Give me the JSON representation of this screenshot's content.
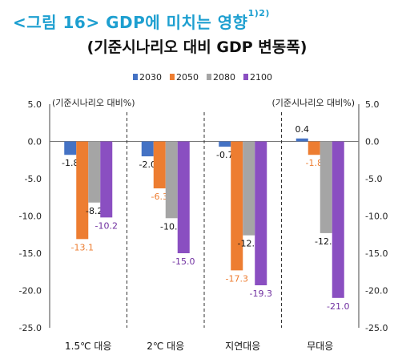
{
  "title": {
    "prefix": "<그림 16> GDP에 미치는 영향",
    "superscript": "1)2)"
  },
  "subtitle": "(기준시나리오 대비 GDP 변동폭)",
  "chart_data": {
    "type": "bar",
    "title": "",
    "categories": [
      "1.5℃ 대응",
      "2℃ 대응",
      "지연대응",
      "무대응"
    ],
    "series": [
      {
        "name": "2030",
        "color": "#4472c4",
        "values": [
          -1.8,
          -2.0,
          -0.7,
          0.4
        ]
      },
      {
        "name": "2050",
        "color": "#ed7d31",
        "values": [
          -13.1,
          -6.3,
          -17.3,
          -1.8
        ]
      },
      {
        "name": "2080",
        "color": "#a5a5a5",
        "values": [
          -8.2,
          -10.3,
          -12.6,
          -12.3
        ]
      },
      {
        "name": "2100",
        "color": "#8a4fc1",
        "values": [
          -10.2,
          -15.0,
          -19.3,
          -21.0
        ]
      }
    ],
    "value_labels": [
      [
        "-1.8",
        "-13.1",
        "-8.2",
        "-10.2"
      ],
      [
        "-2.0",
        "-6.3",
        "-10.3",
        "-15.0"
      ],
      [
        "-0.7",
        "-17.3",
        "-12.6",
        "-19.3"
      ],
      [
        "0.4",
        "-1.8",
        "-12.3",
        "-21.0"
      ]
    ],
    "ylabel_left": "(기준시나리오 대비%)",
    "ylabel_right": "(기준시나리오 대비%)",
    "ylim": [
      -25.0,
      5.0
    ],
    "yticks": [
      "5.0",
      "0.0",
      "-5.0",
      "-10.0",
      "-15.0",
      "-20.0",
      "-25.0"
    ],
    "legend_position": "top-center",
    "grid": false,
    "category_separators": "dashed"
  }
}
